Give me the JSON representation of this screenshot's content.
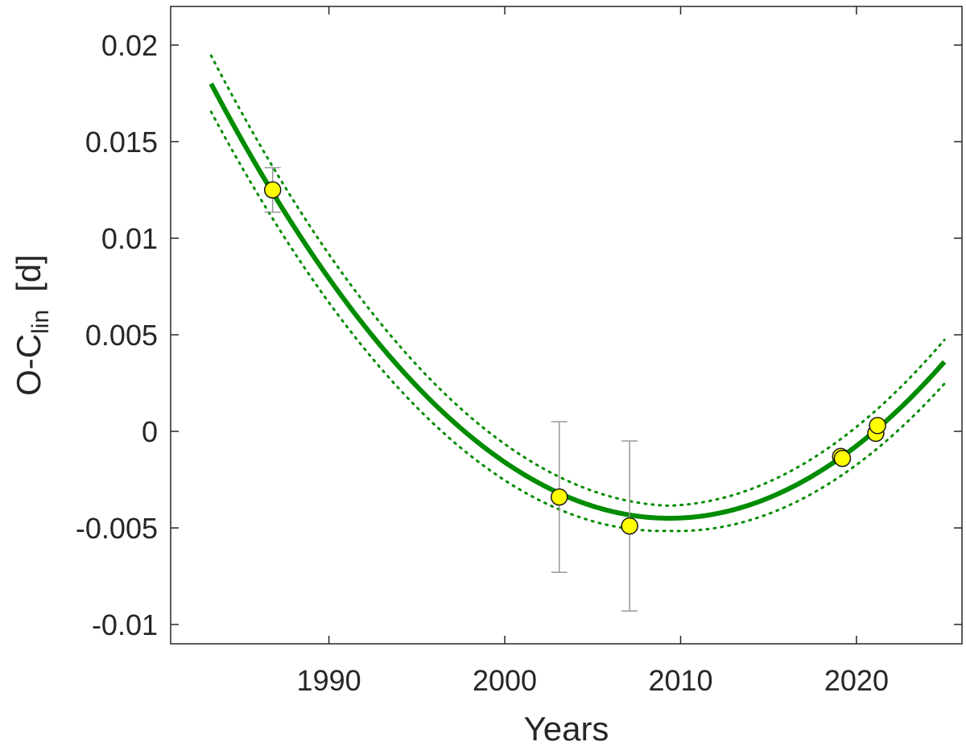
{
  "chart_data": {
    "type": "scatter",
    "title": "",
    "xlabel": "Years",
    "ylabel": {
      "main": "O-C",
      "sub": "lin",
      "unit": "[d]"
    },
    "xlim": [
      1981,
      2026
    ],
    "ylim": [
      -0.011,
      0.022
    ],
    "xticks": [
      1990,
      2000,
      2010,
      2020
    ],
    "xtick_labels": [
      "1990",
      "2000",
      "2010",
      "2020"
    ],
    "yticks": [
      0.02,
      0.015,
      0.01,
      0.005,
      0,
      -0.005,
      -0.01
    ],
    "ytick_labels": [
      "0.02",
      "0.015",
      "0.01",
      "0.005",
      "0",
      "-0.005",
      "-0.01"
    ],
    "grid": false,
    "box": true,
    "fit": {
      "kind": "quadratic",
      "x_range": [
        1983.3,
        2025
      ],
      "anchor_points": [
        [
          1983.3,
          0.018
        ],
        [
          2009.3,
          -0.0045
        ],
        [
          2025.0,
          0.0036
        ]
      ],
      "confidence_band": {
        "half_width_min": 0.00065,
        "growth_per_year": 3.1e-05,
        "center_year": 2009.3
      },
      "color": "#008c00"
    },
    "points": [
      {
        "x": 1986.8,
        "y": 0.0125,
        "err": 0.00115
      },
      {
        "x": 2003.1,
        "y": -0.0034,
        "err": 0.0039
      },
      {
        "x": 2007.1,
        "y": -0.0049,
        "err": 0.0044
      },
      {
        "x": 2019.1,
        "y": -0.0013,
        "err": null
      },
      {
        "x": 2019.2,
        "y": -0.0014,
        "err": null
      },
      {
        "x": 2021.1,
        "y": -0.0001,
        "err": null
      },
      {
        "x": 2021.2,
        "y": 0.0003,
        "err": null
      }
    ],
    "colors": {
      "marker_fill": "#ffff00",
      "marker_edge": "#1a1a1a",
      "errorbar": "#999999",
      "axis": "#262626"
    }
  }
}
